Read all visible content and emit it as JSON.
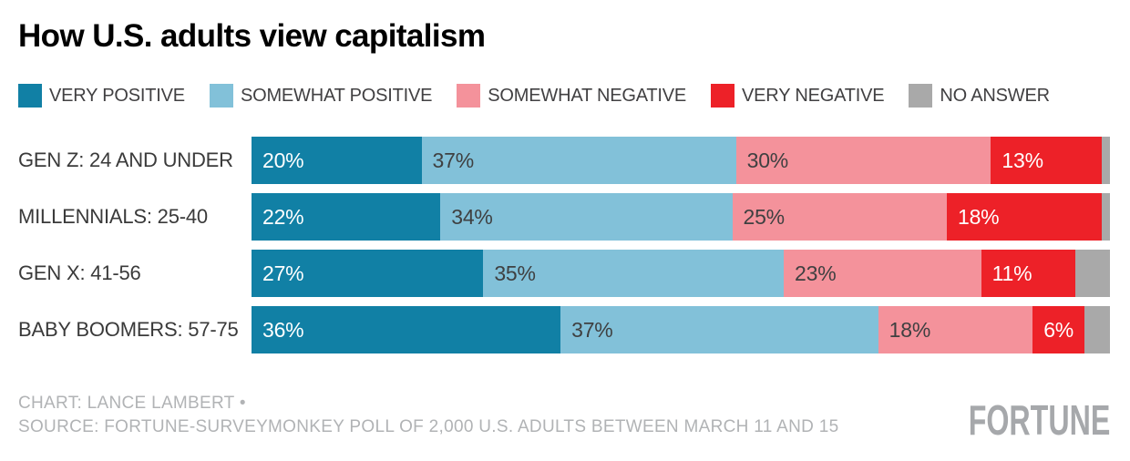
{
  "chart_data": {
    "type": "bar",
    "orientation": "horizontal-stacked",
    "title": "How U.S. adults view capitalism",
    "categories": [
      "GEN Z: 24 AND UNDER",
      "MILLENNIALS: 25-40",
      "GEN X: 41-56",
      "BABY BOOMERS: 57-75"
    ],
    "series": [
      {
        "name": "VERY POSITIVE",
        "color": "#1180a5",
        "label_color": "#ffffff",
        "labeled": true,
        "values": [
          20,
          22,
          27,
          36
        ]
      },
      {
        "name": "SOMEWHAT POSITIVE",
        "color": "#82c1d9",
        "label_color": "#3f4041",
        "labeled": true,
        "values": [
          37,
          34,
          35,
          37
        ]
      },
      {
        "name": "SOMEWHAT NEGATIVE",
        "color": "#f4929b",
        "label_color": "#3f4041",
        "labeled": true,
        "values": [
          30,
          25,
          23,
          18
        ]
      },
      {
        "name": "VERY NEGATIVE",
        "color": "#ed2128",
        "label_color": "#ffffff",
        "labeled": true,
        "values": [
          13,
          18,
          11,
          6
        ]
      },
      {
        "name": "NO ANSWER",
        "color": "#a9a9a9",
        "label_color": "#3f4041",
        "labeled": false,
        "values": [
          1,
          1,
          4,
          3
        ]
      }
    ],
    "value_suffix": "%",
    "xlim": [
      0,
      100
    ],
    "legend_position": "top",
    "grid": false
  },
  "footer": {
    "credit": "CHART: LANCE LAMBERT •",
    "source": "SOURCE: FORTUNE-SURVEYMONKEY POLL OF 2,000 U.S. ADULTS BETWEEN MARCH 11 AND 15",
    "logo": "FORTUNE"
  }
}
